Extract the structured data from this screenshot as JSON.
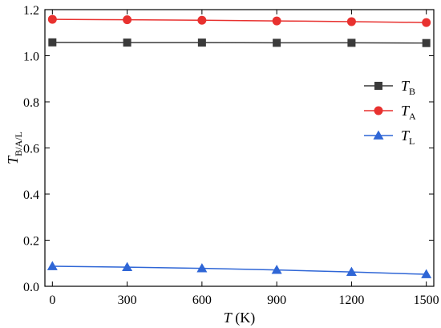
{
  "chart_data": {
    "type": "line",
    "x": [
      0,
      300,
      600,
      900,
      1200,
      1500
    ],
    "xlim": [
      -30,
      1530
    ],
    "ylim": [
      0,
      1.2
    ],
    "x_ticks": [
      "0",
      "300",
      "600",
      "900",
      "1200",
      "1500"
    ],
    "y_ticks": [
      "0.0",
      "0.2",
      "0.4",
      "0.6",
      "0.8",
      "1.0",
      "1.2"
    ],
    "xlabel": {
      "main": "T",
      "rest": " (K)"
    },
    "ylabel": {
      "main": "T",
      "sub": "B/A/L"
    },
    "legend_position": "right-middle",
    "grid": false,
    "series": [
      {
        "name": "T",
        "sub": "B",
        "color": "#3a3a3a",
        "marker": "square",
        "values": [
          1.058,
          1.057,
          1.057,
          1.056,
          1.056,
          1.055
        ]
      },
      {
        "name": "T",
        "sub": "A",
        "color": "#e8312f",
        "marker": "circle",
        "values": [
          1.158,
          1.156,
          1.154,
          1.151,
          1.148,
          1.144
        ]
      },
      {
        "name": "T",
        "sub": "L",
        "color": "#2f66d6",
        "marker": "triangle",
        "values": [
          0.087,
          0.083,
          0.078,
          0.071,
          0.062,
          0.052
        ]
      }
    ]
  }
}
